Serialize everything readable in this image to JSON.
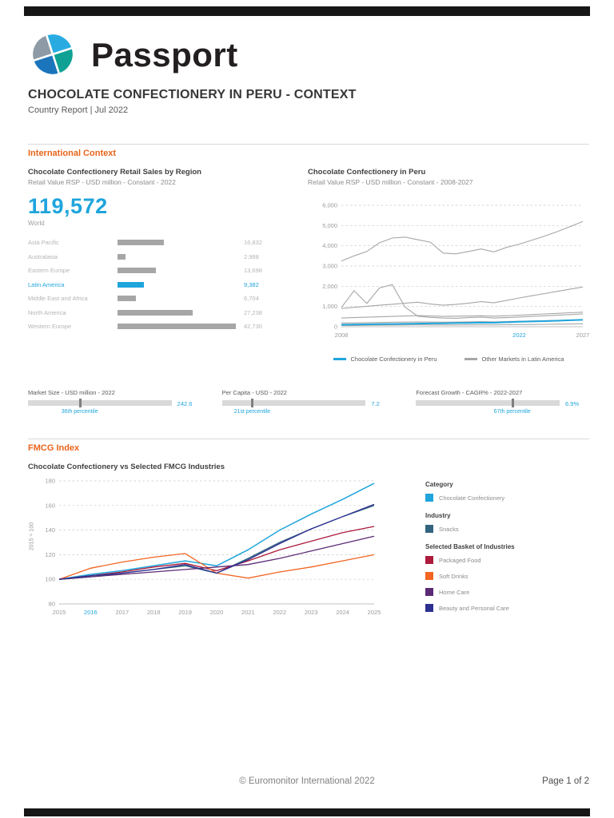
{
  "page": {
    "brand": "Passport",
    "title": "CHOCOLATE CONFECTIONERY IN PERU - CONTEXT",
    "subtitle": "Country Report | Jul 2022",
    "footer_copyright": "© Euromonitor International 2022",
    "footer_page": "Page 1 of 2"
  },
  "sections": {
    "international_context": "International Context",
    "fmcg_index": "FMCG Index"
  },
  "colors": {
    "accent_cyan": "#1FA5DC",
    "accent_orange": "#E8641B",
    "bar_gray": "#A6A6A6",
    "track_gray": "#D9D9D9"
  },
  "chart_data": [
    {
      "id": "region-sales",
      "type": "bar",
      "title": "Chocolate Confectionery Retail Sales by Region",
      "subtitle": "Retail Value RSP - USD million - Constant - 2022",
      "total": {
        "value": "119,572",
        "label": "World"
      },
      "max": 42730,
      "rows": [
        {
          "label": "Asia Pacific",
          "display": "16,832",
          "value": 16832,
          "highlight": false
        },
        {
          "label": "Australasia",
          "display": "2,988",
          "value": 2988,
          "highlight": false
        },
        {
          "label": "Eastern Europe",
          "display": "13,698",
          "value": 13698,
          "highlight": false
        },
        {
          "label": "Latin America",
          "display": "9,382",
          "value": 9382,
          "highlight": true
        },
        {
          "label": "Middle East and Africa",
          "display": "6,704",
          "value": 6704,
          "highlight": false
        },
        {
          "label": "North America",
          "display": "27,238",
          "value": 27238,
          "highlight": false
        },
        {
          "label": "Western Europe",
          "display": "42,730",
          "value": 42730,
          "highlight": false
        }
      ]
    },
    {
      "id": "peru-line",
      "type": "line",
      "title": "Chocolate Confectionery in Peru",
      "subtitle": "Retail Value RSP - USD million - Constant - 2008-2027",
      "x": [
        2008,
        2009,
        2010,
        2011,
        2012,
        2013,
        2014,
        2015,
        2016,
        2017,
        2018,
        2019,
        2020,
        2021,
        2022,
        2023,
        2024,
        2025,
        2026,
        2027
      ],
      "ylim": [
        0,
        6000
      ],
      "yticks": [
        0,
        1000,
        2000,
        3000,
        4000,
        5000,
        6000
      ],
      "xticks": [
        {
          "v": 2008,
          "label": "2008"
        },
        {
          "v": 2022,
          "label": "2022",
          "color": "#1FA5DC"
        },
        {
          "v": 2027,
          "label": "2027"
        }
      ],
      "series": [
        {
          "name": "Other Latin America market 1",
          "color": "#A6A6A6",
          "stroke_width": 1.1,
          "values": [
            3250,
            3500,
            3720,
            4150,
            4380,
            4430,
            4300,
            4180,
            3640,
            3600,
            3720,
            3840,
            3700,
            3920,
            4080,
            4280,
            4480,
            4700,
            4950,
            5200
          ]
        },
        {
          "name": "Other Latin America market 2",
          "color": "#A6A6A6",
          "stroke_width": 1.1,
          "values": [
            900,
            960,
            1010,
            1060,
            1110,
            1160,
            1210,
            1120,
            1060,
            1100,
            1160,
            1240,
            1180,
            1300,
            1420,
            1530,
            1640,
            1750,
            1860,
            1960
          ]
        },
        {
          "name": "Other Latin America market 3",
          "color": "#A6A6A6",
          "stroke_width": 1.1,
          "values": [
            950,
            1780,
            1150,
            1920,
            2080,
            980,
            520,
            460,
            430,
            420,
            450,
            470,
            430,
            450,
            480,
            510,
            540,
            570,
            600,
            630
          ]
        },
        {
          "name": "Other Latin America market 4",
          "color": "#A6A6A6",
          "stroke_width": 1.1,
          "values": [
            430,
            450,
            470,
            490,
            510,
            530,
            550,
            530,
            510,
            520,
            530,
            540,
            520,
            540,
            570,
            600,
            630,
            660,
            690,
            720
          ]
        },
        {
          "name": "Other Latin America market 5",
          "color": "#A6A6A6",
          "stroke_width": 1.1,
          "values": [
            180,
            190,
            200,
            210,
            220,
            230,
            240,
            230,
            225,
            230,
            240,
            250,
            240,
            255,
            270,
            285,
            300,
            315,
            330,
            345
          ]
        },
        {
          "name": "Other Latin America market 6",
          "color": "#A6A6A6",
          "stroke_width": 1.1,
          "values": [
            60,
            65,
            70,
            75,
            80,
            85,
            90,
            88,
            85,
            88,
            92,
            96,
            92,
            98,
            105,
            112,
            119,
            126,
            134,
            142
          ]
        },
        {
          "name": "Chocolate Confectionery in Peru",
          "color": "#1FA5DC",
          "stroke_width": 2,
          "values": [
            100,
            110,
            118,
            127,
            135,
            144,
            152,
            160,
            170,
            180,
            190,
            200,
            196,
            220,
            243,
            260,
            278,
            297,
            318,
            340
          ]
        }
      ],
      "legend": [
        {
          "label": "Chocolate Confectionery in Peru",
          "color": "#1FA5DC"
        },
        {
          "label": "Other Markets in Latin America",
          "color": "#A6A6A6"
        }
      ]
    },
    {
      "id": "fmcg-index",
      "type": "line",
      "title": "Chocolate Confectionery vs Selected FMCG Industries",
      "ylabel": "2015 = 100",
      "x": [
        2015,
        2016,
        2017,
        2018,
        2019,
        2020,
        2021,
        2022,
        2023,
        2024,
        2025
      ],
      "ylim": [
        80,
        180
      ],
      "yticks": [
        80,
        100,
        120,
        140,
        160,
        180
      ],
      "xticks": [
        {
          "v": 2015,
          "label": "2015"
        },
        {
          "v": 2016,
          "label": "2016",
          "color": "#1FA5DC"
        },
        {
          "v": 2017,
          "label": "2017"
        },
        {
          "v": 2018,
          "label": "2018"
        },
        {
          "v": 2019,
          "label": "2019"
        },
        {
          "v": 2020,
          "label": "2020"
        },
        {
          "v": 2021,
          "label": "2021"
        },
        {
          "v": 2022,
          "label": "2022"
        },
        {
          "v": 2023,
          "label": "2023"
        },
        {
          "v": 2024,
          "label": "2024"
        },
        {
          "v": 2025,
          "label": "2025"
        }
      ],
      "series": [
        {
          "name": "Chocolate Confectionery",
          "color": "#1FA5DC",
          "stroke_width": 1.5,
          "values": [
            100,
            104,
            107,
            111,
            115,
            111,
            124,
            140,
            153,
            165,
            178
          ]
        },
        {
          "name": "Snacks",
          "color": "#33647F",
          "stroke_width": 1.3,
          "values": [
            100,
            102,
            105,
            108,
            111,
            105,
            117,
            130,
            141,
            151,
            160
          ]
        },
        {
          "name": "Packaged Food",
          "color": "#AD1A3B",
          "stroke_width": 1.3,
          "values": [
            100,
            103,
            106,
            110,
            113,
            107,
            115,
            124,
            131,
            138,
            143
          ]
        },
        {
          "name": "Soft Drinks",
          "color": "#F26522",
          "stroke_width": 1.3,
          "values": [
            100,
            109,
            114,
            118,
            121,
            105,
            101,
            106,
            110,
            115,
            120
          ]
        },
        {
          "name": "Home Care",
          "color": "#5B2A75",
          "stroke_width": 1.3,
          "values": [
            100,
            102,
            104,
            106,
            108,
            110,
            112,
            117,
            123,
            129,
            135
          ]
        },
        {
          "name": "Beauty and Personal Care",
          "color": "#2D3091",
          "stroke_width": 1.3,
          "values": [
            100,
            103,
            105,
            108,
            112,
            105,
            116,
            129,
            141,
            151,
            161
          ]
        }
      ]
    }
  ],
  "stats": [
    {
      "title": "Market Size - USD million - 2022",
      "value": "242.6",
      "percentile": "36th percentile",
      "pct": 36
    },
    {
      "title": "Per Capita - USD - 2022",
      "value": "7.2",
      "percentile": "21st percentile",
      "pct": 21
    },
    {
      "title": "Forecast Growth - CAGR% - 2022-2027",
      "value": "6.9%",
      "percentile": "67th percentile",
      "pct": 67
    }
  ],
  "fmcg_legend": {
    "groups": [
      {
        "heading": "Category",
        "items": [
          {
            "label": "Chocolate Confectionery",
            "color": "#1FA5DC"
          }
        ]
      },
      {
        "heading": "Industry",
        "items": [
          {
            "label": "Snacks",
            "color": "#33647F"
          }
        ]
      },
      {
        "heading": "Selected Basket of Industries",
        "items": [
          {
            "label": "Packaged Food",
            "color": "#AD1A3B"
          },
          {
            "label": "Soft Drinks",
            "color": "#F26522"
          },
          {
            "label": "Home Care",
            "color": "#5B2A75"
          },
          {
            "label": "Beauty and Personal Care",
            "color": "#2D3091"
          }
        ]
      }
    ]
  }
}
